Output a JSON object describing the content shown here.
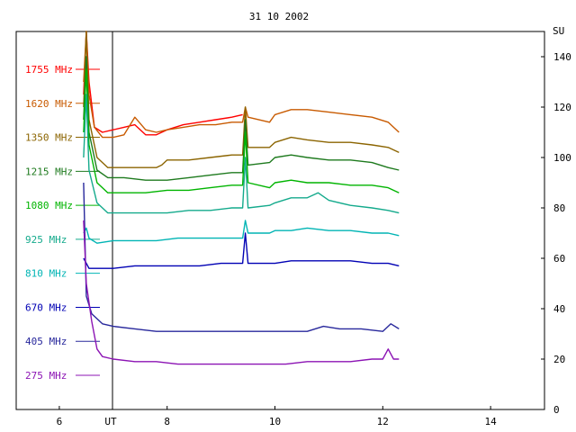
{
  "chart_data": {
    "type": "line",
    "title": "31 10 2002",
    "xlabel": "UT",
    "ylabel": "SU",
    "xlim": [
      5.2,
      15.0
    ],
    "ylim": [
      0,
      150
    ],
    "x_ticks": [
      6,
      8,
      10,
      12,
      14
    ],
    "y_ticks": [
      0,
      20,
      40,
      60,
      80,
      100,
      120,
      140
    ],
    "grid": false,
    "legend_position": "left",
    "series": [
      {
        "name": "1755 MHz",
        "color": "#ff0000",
        "points": [
          [
            6.45,
            125
          ],
          [
            6.5,
            155
          ],
          [
            6.55,
            130
          ],
          [
            6.65,
            112
          ],
          [
            6.8,
            110
          ],
          [
            7.0,
            111
          ],
          [
            7.2,
            112
          ],
          [
            7.4,
            113
          ],
          [
            7.6,
            109
          ],
          [
            7.8,
            109
          ],
          [
            8.0,
            111
          ],
          [
            8.3,
            113
          ],
          [
            8.6,
            114
          ],
          [
            8.9,
            115
          ],
          [
            9.2,
            116
          ],
          [
            9.4,
            117
          ]
        ]
      },
      {
        "name": "1620 MHz",
        "color": "#c85a00",
        "points": [
          [
            6.45,
            130
          ],
          [
            6.5,
            155
          ],
          [
            6.55,
            125
          ],
          [
            6.65,
            112
          ],
          [
            6.8,
            108
          ],
          [
            7.0,
            108
          ],
          [
            7.2,
            109
          ],
          [
            7.4,
            116
          ],
          [
            7.6,
            111
          ],
          [
            7.8,
            110
          ],
          [
            8.0,
            111
          ],
          [
            8.3,
            112
          ],
          [
            8.6,
            113
          ],
          [
            8.9,
            113
          ],
          [
            9.2,
            114
          ],
          [
            9.4,
            114
          ],
          [
            9.45,
            120
          ],
          [
            9.5,
            116
          ],
          [
            9.9,
            114
          ],
          [
            10.0,
            117
          ],
          [
            10.3,
            119
          ],
          [
            10.6,
            119
          ],
          [
            11.0,
            118
          ],
          [
            11.4,
            117
          ],
          [
            11.8,
            116
          ],
          [
            12.1,
            114
          ],
          [
            12.3,
            110
          ]
        ]
      },
      {
        "name": "1350 MHz",
        "color": "#8b6400",
        "points": [
          [
            6.45,
            120
          ],
          [
            6.5,
            150
          ],
          [
            6.55,
            115
          ],
          [
            6.7,
            100
          ],
          [
            6.9,
            96
          ],
          [
            7.2,
            96
          ],
          [
            7.5,
            96
          ],
          [
            7.8,
            96
          ],
          [
            7.9,
            97
          ],
          [
            8.0,
            99
          ],
          [
            8.4,
            99
          ],
          [
            8.8,
            100
          ],
          [
            9.2,
            101
          ],
          [
            9.4,
            101
          ],
          [
            9.45,
            120
          ],
          [
            9.5,
            104
          ],
          [
            9.9,
            104
          ],
          [
            10.0,
            106
          ],
          [
            10.3,
            108
          ],
          [
            10.6,
            107
          ],
          [
            11.0,
            106
          ],
          [
            11.4,
            106
          ],
          [
            11.8,
            105
          ],
          [
            12.1,
            104
          ],
          [
            12.3,
            102
          ]
        ]
      },
      {
        "name": "1215 MHz",
        "color": "#1e7a1e",
        "points": [
          [
            6.45,
            115
          ],
          [
            6.5,
            140
          ],
          [
            6.55,
            110
          ],
          [
            6.7,
            95
          ],
          [
            6.9,
            92
          ],
          [
            7.2,
            92
          ],
          [
            7.6,
            91
          ],
          [
            8.0,
            91
          ],
          [
            8.4,
            92
          ],
          [
            8.8,
            93
          ],
          [
            9.2,
            94
          ],
          [
            9.4,
            94
          ],
          [
            9.45,
            115
          ],
          [
            9.5,
            97
          ],
          [
            9.9,
            98
          ],
          [
            10.0,
            100
          ],
          [
            10.3,
            101
          ],
          [
            10.6,
            100
          ],
          [
            11.0,
            99
          ],
          [
            11.4,
            99
          ],
          [
            11.8,
            98
          ],
          [
            12.1,
            96
          ],
          [
            12.3,
            95
          ]
        ]
      },
      {
        "name": "1080 MHz",
        "color": "#00b400",
        "points": [
          [
            6.45,
            110
          ],
          [
            6.5,
            135
          ],
          [
            6.55,
            105
          ],
          [
            6.7,
            90
          ],
          [
            6.9,
            86
          ],
          [
            7.2,
            86
          ],
          [
            7.6,
            86
          ],
          [
            8.0,
            87
          ],
          [
            8.4,
            87
          ],
          [
            8.8,
            88
          ],
          [
            9.2,
            89
          ],
          [
            9.4,
            89
          ],
          [
            9.45,
            110
          ],
          [
            9.5,
            90
          ],
          [
            9.9,
            88
          ],
          [
            10.0,
            90
          ],
          [
            10.3,
            91
          ],
          [
            10.6,
            90
          ],
          [
            11.0,
            90
          ],
          [
            11.4,
            89
          ],
          [
            11.8,
            89
          ],
          [
            12.1,
            88
          ],
          [
            12.3,
            86
          ]
        ]
      },
      {
        "name": "925 MHz",
        "color": "#14aa8c",
        "points": [
          [
            6.45,
            100
          ],
          [
            6.5,
            125
          ],
          [
            6.55,
            95
          ],
          [
            6.7,
            82
          ],
          [
            6.9,
            78
          ],
          [
            7.2,
            78
          ],
          [
            7.6,
            78
          ],
          [
            8.0,
            78
          ],
          [
            8.4,
            79
          ],
          [
            8.8,
            79
          ],
          [
            9.2,
            80
          ],
          [
            9.4,
            80
          ],
          [
            9.45,
            100
          ],
          [
            9.5,
            80
          ],
          [
            9.9,
            81
          ],
          [
            10.0,
            82
          ],
          [
            10.3,
            84
          ],
          [
            10.6,
            84
          ],
          [
            10.8,
            86
          ],
          [
            11.0,
            83
          ],
          [
            11.4,
            81
          ],
          [
            11.8,
            80
          ],
          [
            12.1,
            79
          ],
          [
            12.3,
            78
          ]
        ]
      },
      {
        "name": "810 MHz",
        "color": "#00b4b4",
        "points": [
          [
            6.45,
            70
          ],
          [
            6.5,
            72
          ],
          [
            6.55,
            68
          ],
          [
            6.7,
            66
          ],
          [
            7.0,
            67
          ],
          [
            7.4,
            67
          ],
          [
            7.8,
            67
          ],
          [
            8.2,
            68
          ],
          [
            8.6,
            68
          ],
          [
            9.0,
            68
          ],
          [
            9.4,
            68
          ],
          [
            9.45,
            75
          ],
          [
            9.5,
            70
          ],
          [
            9.9,
            70
          ],
          [
            10.0,
            71
          ],
          [
            10.3,
            71
          ],
          [
            10.6,
            72
          ],
          [
            11.0,
            71
          ],
          [
            11.4,
            71
          ],
          [
            11.8,
            70
          ],
          [
            12.1,
            70
          ],
          [
            12.3,
            69
          ]
        ]
      },
      {
        "name": "670 MHz",
        "color": "#0000b4",
        "points": [
          [
            6.45,
            60
          ],
          [
            6.5,
            58
          ],
          [
            6.55,
            56
          ],
          [
            6.7,
            56
          ],
          [
            7.0,
            56
          ],
          [
            7.4,
            57
          ],
          [
            7.8,
            57
          ],
          [
            8.2,
            57
          ],
          [
            8.6,
            57
          ],
          [
            9.0,
            58
          ],
          [
            9.4,
            58
          ],
          [
            9.45,
            70
          ],
          [
            9.5,
            58
          ],
          [
            9.9,
            58
          ],
          [
            10.0,
            58
          ],
          [
            10.3,
            59
          ],
          [
            10.6,
            59
          ],
          [
            11.0,
            59
          ],
          [
            11.4,
            59
          ],
          [
            11.8,
            58
          ],
          [
            12.1,
            58
          ],
          [
            12.3,
            57
          ]
        ]
      },
      {
        "name": "405 MHz",
        "color": "#28289c",
        "points": [
          [
            6.45,
            90
          ],
          [
            6.5,
            45
          ],
          [
            6.6,
            38
          ],
          [
            6.8,
            34
          ],
          [
            7.0,
            33
          ],
          [
            7.4,
            32
          ],
          [
            7.8,
            31
          ],
          [
            8.2,
            31
          ],
          [
            8.6,
            31
          ],
          [
            9.0,
            31
          ],
          [
            9.4,
            31
          ],
          [
            9.8,
            31
          ],
          [
            10.2,
            31
          ],
          [
            10.6,
            31
          ],
          [
            10.9,
            33
          ],
          [
            11.2,
            32
          ],
          [
            11.6,
            32
          ],
          [
            12.0,
            31
          ],
          [
            12.15,
            34
          ],
          [
            12.3,
            32
          ]
        ]
      },
      {
        "name": "275 MHz",
        "color": "#8c14b4",
        "points": [
          [
            6.45,
            75
          ],
          [
            6.5,
            50
          ],
          [
            6.6,
            35
          ],
          [
            6.7,
            24
          ],
          [
            6.8,
            21
          ],
          [
            7.0,
            20
          ],
          [
            7.4,
            19
          ],
          [
            7.8,
            19
          ],
          [
            8.2,
            18
          ],
          [
            8.6,
            18
          ],
          [
            9.0,
            18
          ],
          [
            9.4,
            18
          ],
          [
            9.8,
            18
          ],
          [
            10.2,
            18
          ],
          [
            10.6,
            19
          ],
          [
            11.0,
            19
          ],
          [
            11.4,
            19
          ],
          [
            11.8,
            20
          ],
          [
            12.0,
            20
          ],
          [
            12.1,
            24
          ],
          [
            12.2,
            20
          ],
          [
            12.3,
            20
          ]
        ]
      }
    ]
  }
}
